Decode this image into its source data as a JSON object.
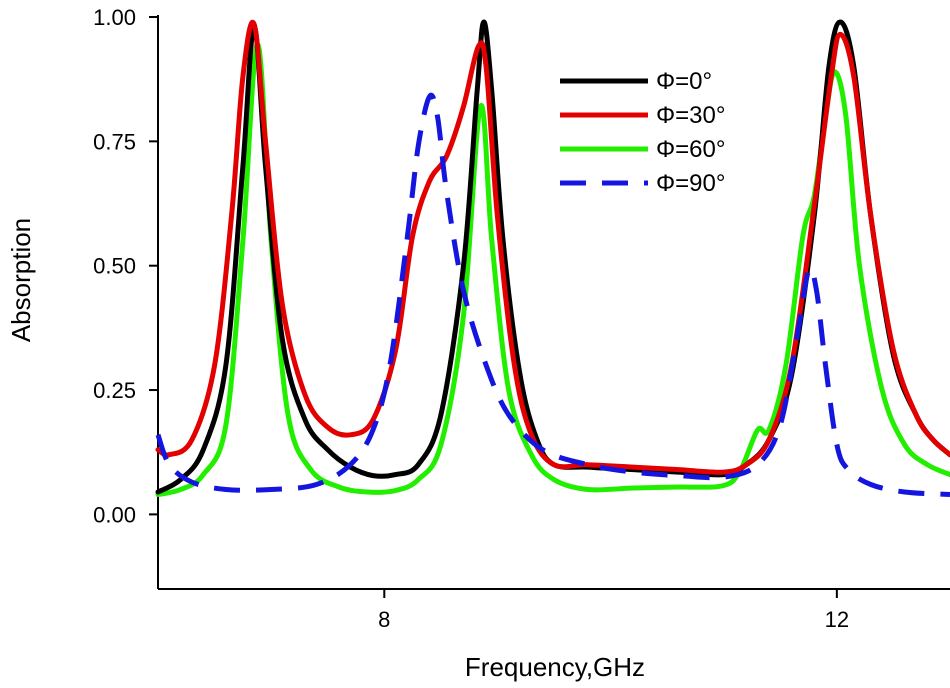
{
  "chart_data": {
    "type": "line",
    "title": "",
    "xlabel": "Frequency,GHz",
    "ylabel": "Absorption",
    "xlim": [
      6.0,
      13.0
    ],
    "ylim": [
      -0.15,
      1.0
    ],
    "x_ticks": [
      8,
      12
    ],
    "x_tick_labels": [
      "8",
      "12"
    ],
    "y_ticks": [
      0.0,
      0.25,
      0.5,
      0.75,
      1.0
    ],
    "y_tick_labels": [
      "0.00",
      "0.25",
      "0.50",
      "0.75",
      "1.00"
    ],
    "grid": false,
    "legend_position": "top-right",
    "series": [
      {
        "name": "Φ=0°",
        "color": "#000000",
        "dash": "solid",
        "points": [
          [
            6.0,
            0.045
          ],
          [
            6.2,
            0.07
          ],
          [
            6.4,
            0.13
          ],
          [
            6.6,
            0.3
          ],
          [
            6.75,
            0.7
          ],
          [
            6.85,
            0.98
          ],
          [
            6.95,
            0.7
          ],
          [
            7.1,
            0.35
          ],
          [
            7.3,
            0.19
          ],
          [
            7.5,
            0.13
          ],
          [
            7.7,
            0.095
          ],
          [
            7.9,
            0.078
          ],
          [
            8.1,
            0.08
          ],
          [
            8.3,
            0.1
          ],
          [
            8.5,
            0.2
          ],
          [
            8.7,
            0.5
          ],
          [
            8.82,
            0.85
          ],
          [
            8.88,
            0.99
          ],
          [
            8.95,
            0.85
          ],
          [
            9.05,
            0.55
          ],
          [
            9.2,
            0.28
          ],
          [
            9.35,
            0.15
          ],
          [
            9.5,
            0.1
          ],
          [
            9.8,
            0.095
          ],
          [
            10.2,
            0.09
          ],
          [
            10.6,
            0.085
          ],
          [
            11.0,
            0.08
          ],
          [
            11.2,
            0.1
          ],
          [
            11.4,
            0.15
          ],
          [
            11.6,
            0.28
          ],
          [
            11.8,
            0.6
          ],
          [
            11.93,
            0.9
          ],
          [
            12.03,
            0.99
          ],
          [
            12.15,
            0.9
          ],
          [
            12.3,
            0.6
          ],
          [
            12.5,
            0.32
          ],
          [
            12.7,
            0.2
          ],
          [
            12.85,
            0.15
          ],
          [
            13.0,
            0.12
          ]
        ]
      },
      {
        "name": "Φ=30°",
        "color": "#e30000",
        "dash": "solid",
        "points": [
          [
            6.0,
            0.13
          ],
          [
            6.1,
            0.12
          ],
          [
            6.3,
            0.15
          ],
          [
            6.5,
            0.3
          ],
          [
            6.65,
            0.6
          ],
          [
            6.75,
            0.88
          ],
          [
            6.85,
            0.985
          ],
          [
            6.95,
            0.75
          ],
          [
            7.1,
            0.42
          ],
          [
            7.3,
            0.24
          ],
          [
            7.5,
            0.175
          ],
          [
            7.7,
            0.16
          ],
          [
            7.9,
            0.19
          ],
          [
            8.1,
            0.33
          ],
          [
            8.25,
            0.56
          ],
          [
            8.4,
            0.67
          ],
          [
            8.55,
            0.72
          ],
          [
            8.7,
            0.82
          ],
          [
            8.83,
            0.94
          ],
          [
            8.9,
            0.9
          ],
          [
            9.0,
            0.6
          ],
          [
            9.15,
            0.3
          ],
          [
            9.3,
            0.16
          ],
          [
            9.5,
            0.1
          ],
          [
            9.8,
            0.1
          ],
          [
            10.2,
            0.095
          ],
          [
            10.6,
            0.09
          ],
          [
            11.0,
            0.085
          ],
          [
            11.2,
            0.1
          ],
          [
            11.4,
            0.15
          ],
          [
            11.6,
            0.3
          ],
          [
            11.8,
            0.62
          ],
          [
            11.95,
            0.88
          ],
          [
            12.03,
            0.965
          ],
          [
            12.15,
            0.88
          ],
          [
            12.3,
            0.6
          ],
          [
            12.5,
            0.33
          ],
          [
            12.7,
            0.2
          ],
          [
            12.85,
            0.15
          ],
          [
            13.0,
            0.12
          ]
        ]
      },
      {
        "name": "Φ=60°",
        "color": "#22ee00",
        "dash": "solid",
        "points": [
          [
            6.0,
            0.04
          ],
          [
            6.2,
            0.05
          ],
          [
            6.4,
            0.08
          ],
          [
            6.6,
            0.18
          ],
          [
            6.75,
            0.55
          ],
          [
            6.88,
            0.945
          ],
          [
            7.0,
            0.55
          ],
          [
            7.15,
            0.2
          ],
          [
            7.35,
            0.09
          ],
          [
            7.6,
            0.055
          ],
          [
            7.85,
            0.045
          ],
          [
            8.1,
            0.048
          ],
          [
            8.3,
            0.07
          ],
          [
            8.5,
            0.14
          ],
          [
            8.7,
            0.4
          ],
          [
            8.85,
            0.82
          ],
          [
            8.95,
            0.55
          ],
          [
            9.1,
            0.25
          ],
          [
            9.3,
            0.12
          ],
          [
            9.5,
            0.07
          ],
          [
            9.8,
            0.05
          ],
          [
            10.2,
            0.053
          ],
          [
            10.6,
            0.055
          ],
          [
            11.0,
            0.058
          ],
          [
            11.15,
            0.09
          ],
          [
            11.3,
            0.17
          ],
          [
            11.4,
            0.17
          ],
          [
            11.55,
            0.3
          ],
          [
            11.7,
            0.56
          ],
          [
            11.8,
            0.64
          ],
          [
            11.9,
            0.8
          ],
          [
            11.98,
            0.89
          ],
          [
            12.08,
            0.8
          ],
          [
            12.2,
            0.5
          ],
          [
            12.4,
            0.25
          ],
          [
            12.6,
            0.14
          ],
          [
            12.8,
            0.1
          ],
          [
            13.0,
            0.08
          ]
        ]
      },
      {
        "name": "Φ=90°",
        "color": "#1515e0",
        "dash": "dashed",
        "points": [
          [
            6.0,
            0.16
          ],
          [
            6.1,
            0.1
          ],
          [
            6.3,
            0.065
          ],
          [
            6.6,
            0.05
          ],
          [
            7.0,
            0.05
          ],
          [
            7.4,
            0.06
          ],
          [
            7.7,
            0.1
          ],
          [
            7.9,
            0.17
          ],
          [
            8.05,
            0.3
          ],
          [
            8.2,
            0.55
          ],
          [
            8.3,
            0.74
          ],
          [
            8.4,
            0.84
          ],
          [
            8.47,
            0.8
          ],
          [
            8.55,
            0.65
          ],
          [
            8.7,
            0.45
          ],
          [
            8.9,
            0.3
          ],
          [
            9.1,
            0.2
          ],
          [
            9.4,
            0.13
          ],
          [
            9.8,
            0.1
          ],
          [
            10.2,
            0.085
          ],
          [
            10.6,
            0.078
          ],
          [
            11.0,
            0.075
          ],
          [
            11.3,
            0.1
          ],
          [
            11.5,
            0.18
          ],
          [
            11.65,
            0.36
          ],
          [
            11.75,
            0.49
          ],
          [
            11.82,
            0.45
          ],
          [
            11.9,
            0.3
          ],
          [
            12.0,
            0.14
          ],
          [
            12.1,
            0.09
          ],
          [
            12.3,
            0.06
          ],
          [
            12.6,
            0.045
          ],
          [
            13.0,
            0.04
          ]
        ]
      }
    ]
  }
}
